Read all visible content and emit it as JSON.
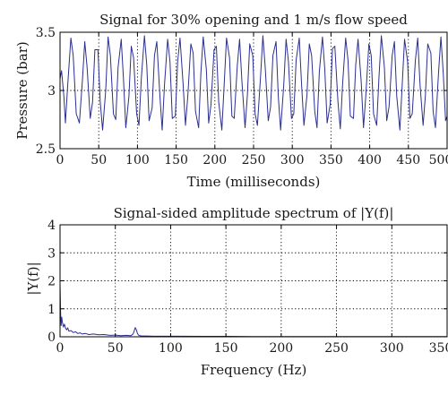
{
  "colors": {
    "series": "#2b2f8f",
    "axis": "#000000"
  },
  "chart_data": [
    {
      "type": "line",
      "title": "Signal for 30% opening and 1 m/s flow speed",
      "xlabel": "Time (milliseconds)",
      "ylabel": "Pressure (bar)",
      "xlim": [
        0,
        500
      ],
      "ylim": [
        2.5,
        3.5
      ],
      "xticks": [
        0,
        50,
        100,
        150,
        200,
        250,
        300,
        350,
        400,
        450,
        500
      ],
      "xtick_labels": [
        "0",
        "50",
        "100",
        "150",
        "200",
        "250",
        "300",
        "350",
        "400",
        "450",
        "500"
      ],
      "yticks": [
        2.5,
        3,
        3.5
      ],
      "ytick_labels": [
        "2.5",
        "3",
        "3.5"
      ],
      "grid": true,
      "series": [
        {
          "x": [
            0,
            2,
            5,
            7,
            10,
            14,
            17,
            21,
            25,
            29,
            32,
            35,
            39,
            42,
            45,
            49,
            52,
            55,
            59,
            62,
            65,
            69,
            72,
            75,
            79,
            82,
            85,
            89,
            92,
            95,
            99,
            102,
            105,
            109,
            112,
            115,
            119,
            122,
            125,
            129,
            132,
            135,
            139,
            142,
            145,
            149,
            152,
            155,
            159,
            162,
            165,
            169,
            172,
            175,
            179,
            182,
            185,
            189,
            192,
            195,
            199,
            202,
            205,
            209,
            212,
            215,
            219,
            222,
            225,
            229,
            232,
            235,
            239,
            242,
            245,
            249,
            252,
            255,
            259,
            262,
            265,
            269,
            272,
            275,
            279,
            282,
            285,
            289,
            292,
            295,
            299,
            302,
            305,
            309,
            312,
            315,
            319,
            322,
            325,
            329,
            332,
            335,
            339,
            342,
            345,
            349,
            352,
            355,
            359,
            362,
            365,
            369,
            372,
            375,
            379,
            382,
            385,
            389,
            392,
            395,
            399,
            402,
            405,
            409,
            412,
            415,
            419,
            422,
            425,
            429,
            432,
            435,
            439,
            442,
            445,
            449,
            452,
            455,
            459,
            462,
            465,
            469,
            472,
            475,
            479,
            482,
            485,
            489,
            492,
            495,
            498,
            500
          ],
          "y": [
            3.1,
            3.17,
            2.95,
            2.72,
            3.05,
            3.45,
            3.3,
            2.8,
            2.72,
            3.1,
            3.42,
            3.2,
            2.76,
            2.9,
            3.35,
            3.35,
            2.9,
            2.66,
            3.0,
            3.46,
            3.3,
            2.8,
            2.75,
            3.2,
            3.44,
            3.1,
            2.68,
            2.95,
            3.38,
            3.28,
            2.8,
            2.7,
            3.1,
            3.47,
            3.22,
            2.74,
            2.85,
            3.3,
            3.42,
            2.95,
            2.66,
            3.05,
            3.44,
            3.25,
            2.76,
            2.78,
            3.25,
            3.45,
            3.05,
            2.7,
            2.95,
            3.4,
            3.32,
            2.82,
            2.68,
            3.15,
            3.46,
            3.18,
            2.72,
            2.88,
            3.35,
            3.38,
            2.9,
            2.66,
            3.05,
            3.45,
            3.28,
            2.78,
            2.76,
            3.22,
            3.44,
            3.08,
            2.68,
            2.96,
            3.4,
            3.3,
            2.8,
            2.7,
            3.12,
            3.47,
            3.2,
            2.74,
            2.86,
            3.3,
            3.42,
            2.95,
            2.66,
            3.05,
            3.44,
            3.25,
            2.76,
            2.8,
            3.26,
            3.45,
            3.05,
            2.7,
            2.96,
            3.4,
            3.3,
            2.82,
            2.68,
            3.16,
            3.46,
            3.18,
            2.72,
            2.88,
            3.36,
            3.38,
            2.9,
            2.67,
            3.06,
            3.45,
            3.26,
            2.78,
            2.76,
            3.22,
            3.44,
            3.08,
            2.68,
            2.96,
            3.4,
            3.3,
            2.8,
            2.7,
            3.12,
            3.47,
            3.2,
            2.74,
            2.86,
            3.3,
            3.42,
            2.95,
            2.66,
            3.05,
            3.44,
            3.25,
            2.76,
            2.8,
            3.26,
            3.45,
            3.05,
            2.7,
            2.96,
            3.4,
            3.32,
            2.82,
            2.68,
            3.16,
            3.46,
            3.15,
            2.74,
            2.78
          ]
        }
      ]
    },
    {
      "type": "line",
      "title": "Signal-sided amplitude spectrum of |Y(f)|",
      "xlabel": "Frequency (Hz)",
      "ylabel": "|Y(f)|",
      "xlim": [
        0,
        350
      ],
      "ylim": [
        0,
        4
      ],
      "xticks": [
        0,
        50,
        100,
        150,
        200,
        250,
        300,
        350
      ],
      "xtick_labels": [
        "0",
        "50",
        "100",
        "150",
        "200",
        "250",
        "300",
        "350"
      ],
      "yticks": [
        0,
        1,
        2,
        3,
        4
      ],
      "ytick_labels": [
        "0",
        "1",
        "2",
        "3",
        "4"
      ],
      "grid": true,
      "series": [
        {
          "x": [
            0,
            0.5,
            1,
            1.5,
            2,
            3,
            4,
            5,
            6,
            7,
            8,
            10,
            12,
            14,
            16,
            18,
            20,
            23,
            26,
            30,
            35,
            40,
            45,
            50,
            55,
            60,
            64,
            66,
            67,
            68,
            69,
            70,
            71,
            72,
            74,
            78,
            85,
            95,
            110,
            130,
            150,
            175,
            200,
            230,
            260,
            290,
            320,
            350
          ],
          "y": [
            1.9,
            0.9,
            0.4,
            0.7,
            0.55,
            0.35,
            0.45,
            0.3,
            0.25,
            0.32,
            0.2,
            0.22,
            0.15,
            0.18,
            0.12,
            0.14,
            0.1,
            0.12,
            0.08,
            0.1,
            0.07,
            0.08,
            0.05,
            0.06,
            0.04,
            0.05,
            0.04,
            0.1,
            0.2,
            0.33,
            0.25,
            0.12,
            0.06,
            0.04,
            0.03,
            0.03,
            0.02,
            0.02,
            0.02,
            0.015,
            0.015,
            0.01,
            0.01,
            0.01,
            0.01,
            0.01,
            0.01,
            0.01
          ]
        }
      ]
    }
  ]
}
